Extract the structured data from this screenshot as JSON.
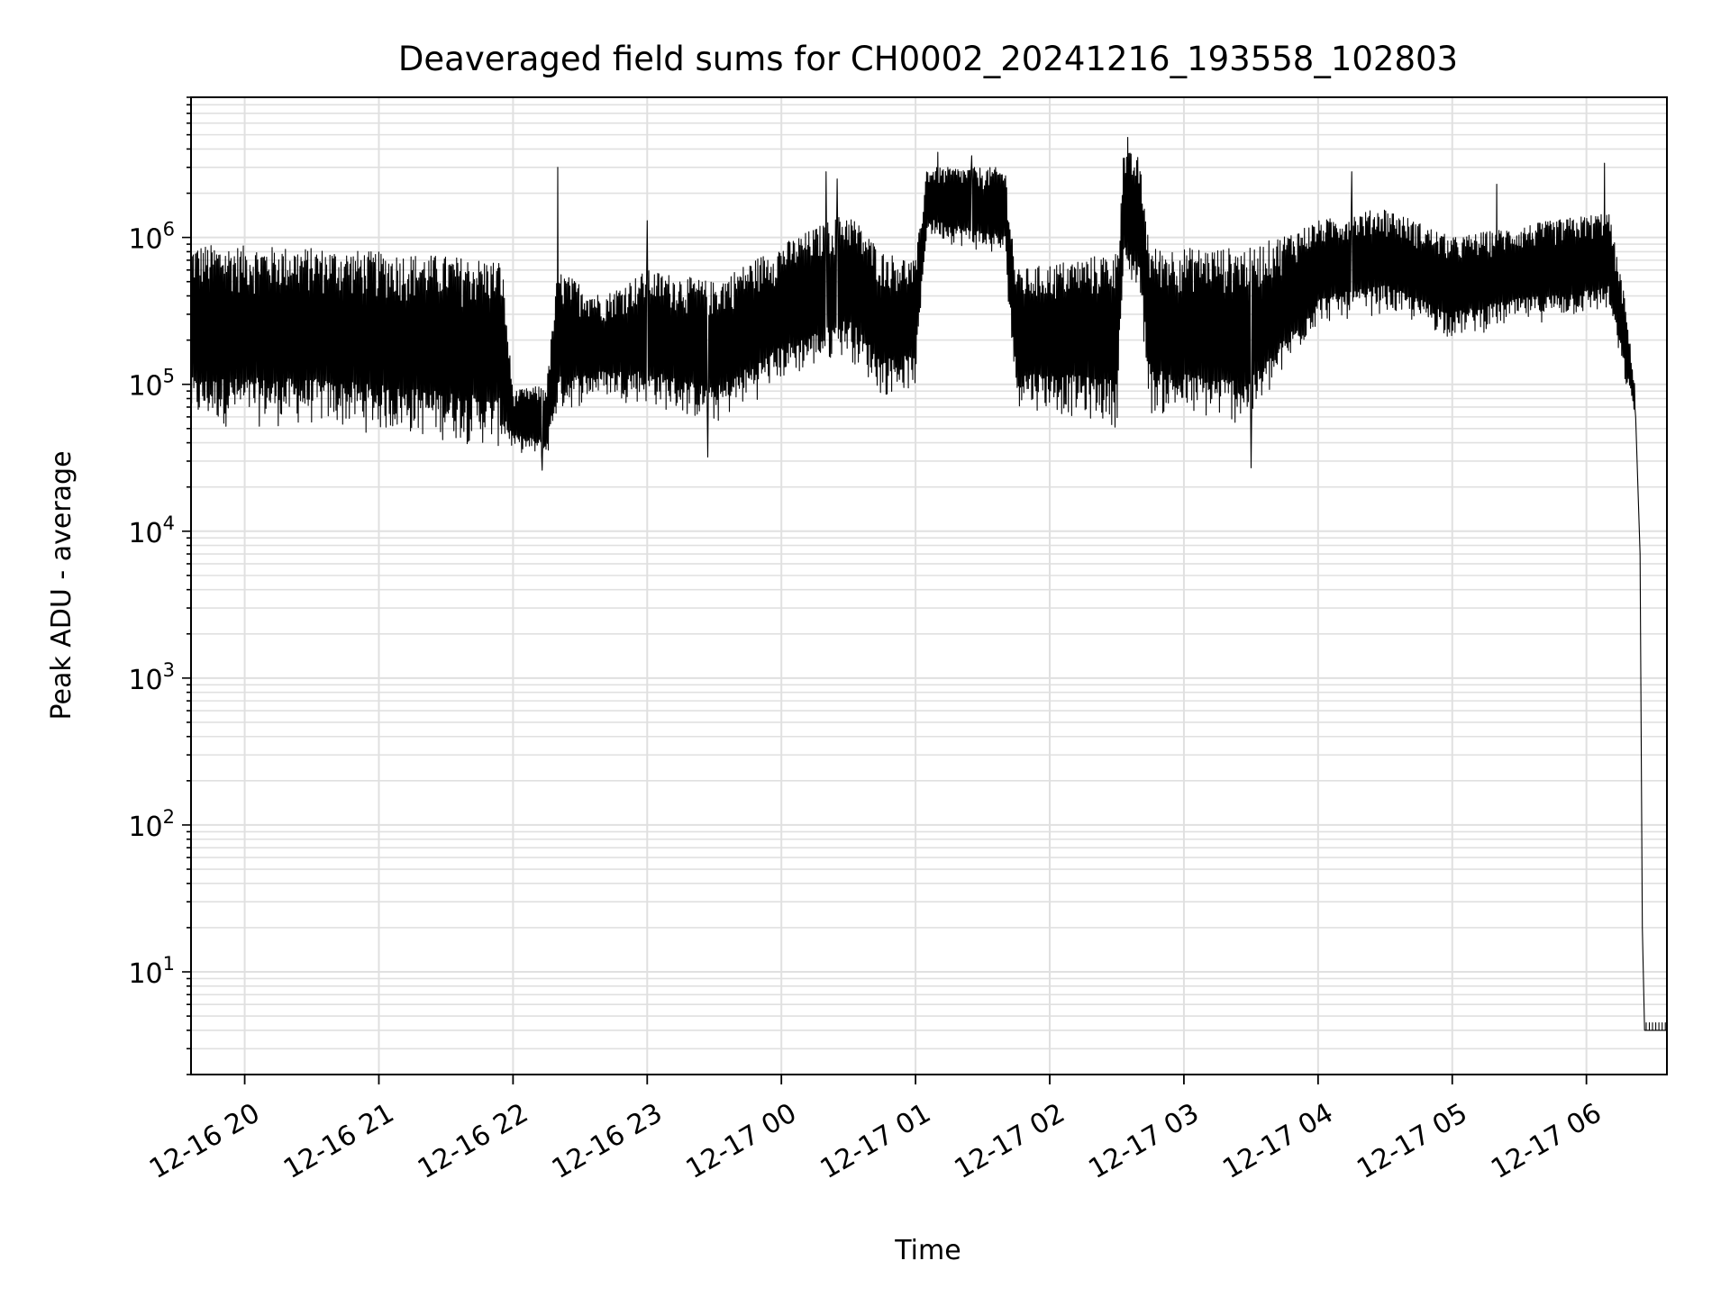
{
  "chart_data": {
    "type": "line",
    "title": "Deaveraged field sums for CH0002_20241216_193558_102803",
    "xlabel": "Time",
    "ylabel": "Peak ADU - average",
    "y_scale": "log",
    "ylim": [
      2,
      9000000
    ],
    "xlim": [
      "2024-12-16 19:36",
      "2024-12-17 06:36"
    ],
    "grid": true,
    "grid_minor": true,
    "line_color": "#000000",
    "grid_color": "#e0e0e0",
    "x_ticks": [
      {
        "t": "2024-12-16 20:00",
        "label": "12-16 20"
      },
      {
        "t": "2024-12-16 21:00",
        "label": "12-16 21"
      },
      {
        "t": "2024-12-16 22:00",
        "label": "12-16 22"
      },
      {
        "t": "2024-12-16 23:00",
        "label": "12-16 23"
      },
      {
        "t": "2024-12-17 00:00",
        "label": "12-17 00"
      },
      {
        "t": "2024-12-17 01:00",
        "label": "12-17 01"
      },
      {
        "t": "2024-12-17 02:00",
        "label": "12-17 02"
      },
      {
        "t": "2024-12-17 03:00",
        "label": "12-17 03"
      },
      {
        "t": "2024-12-17 04:00",
        "label": "12-17 04"
      },
      {
        "t": "2024-12-17 05:00",
        "label": "12-17 05"
      },
      {
        "t": "2024-12-17 06:00",
        "label": "12-17 06"
      }
    ],
    "y_ticks": [
      {
        "value": 10,
        "base": "10",
        "exp": "1"
      },
      {
        "value": 100,
        "base": "10",
        "exp": "2"
      },
      {
        "value": 1000,
        "base": "10",
        "exp": "3"
      },
      {
        "value": 10000,
        "base": "10",
        "exp": "4"
      },
      {
        "value": 100000,
        "base": "10",
        "exp": "5"
      },
      {
        "value": 1000000,
        "base": "10",
        "exp": "6"
      }
    ],
    "series": [
      {
        "style": "dense-oscillation",
        "envelope": [
          {
            "t": "2024-12-16 19:36",
            "low": 50000,
            "high": 900000
          },
          {
            "t": "2024-12-16 20:30",
            "low": 50000,
            "high": 850000
          },
          {
            "t": "2024-12-16 21:30",
            "low": 40000,
            "high": 750000
          },
          {
            "t": "2024-12-16 21:55",
            "low": 35000,
            "high": 700000
          },
          {
            "t": "2024-12-16 22:00",
            "low": 35000,
            "high": 90000
          },
          {
            "t": "2024-12-16 22:15",
            "low": 30000,
            "high": 100000
          },
          {
            "t": "2024-12-16 22:20",
            "low": 60000,
            "high": 600000
          },
          {
            "t": "2024-12-16 22:40",
            "low": 80000,
            "high": 400000
          },
          {
            "t": "2024-12-16 23:00",
            "low": 70000,
            "high": 600000
          },
          {
            "t": "2024-12-16 23:30",
            "low": 50000,
            "high": 500000
          },
          {
            "t": "2024-12-17 00:00",
            "low": 100000,
            "high": 900000
          },
          {
            "t": "2024-12-17 00:30",
            "low": 150000,
            "high": 1500000
          },
          {
            "t": "2024-12-17 00:45",
            "low": 80000,
            "high": 800000
          },
          {
            "t": "2024-12-17 01:00",
            "low": 90000,
            "high": 700000
          },
          {
            "t": "2024-12-17 01:05",
            "low": 1000000,
            "high": 3000000
          },
          {
            "t": "2024-12-17 01:40",
            "low": 700000,
            "high": 3000000
          },
          {
            "t": "2024-12-17 01:45",
            "low": 70000,
            "high": 600000
          },
          {
            "t": "2024-12-17 02:30",
            "low": 50000,
            "high": 800000
          },
          {
            "t": "2024-12-17 02:33",
            "low": 500000,
            "high": 4000000
          },
          {
            "t": "2024-12-17 02:40",
            "low": 400000,
            "high": 3500000
          },
          {
            "t": "2024-12-17 02:45",
            "low": 60000,
            "high": 850000
          },
          {
            "t": "2024-12-17 03:30",
            "low": 50000,
            "high": 850000
          },
          {
            "t": "2024-12-17 04:00",
            "low": 250000,
            "high": 1300000
          },
          {
            "t": "2024-12-17 04:30",
            "low": 300000,
            "high": 1600000
          },
          {
            "t": "2024-12-17 05:00",
            "low": 200000,
            "high": 1000000
          },
          {
            "t": "2024-12-17 05:30",
            "low": 250000,
            "high": 1200000
          },
          {
            "t": "2024-12-17 06:10",
            "low": 300000,
            "high": 1500000
          },
          {
            "t": "2024-12-17 06:17",
            "low": 100000,
            "high": 400000
          },
          {
            "t": "2024-12-17 06:22",
            "low": 60000,
            "high": 90000
          }
        ],
        "spikes": [
          {
            "t": "2024-12-16 22:20",
            "value": 3000000
          },
          {
            "t": "2024-12-16 23:00",
            "value": 1300000
          },
          {
            "t": "2024-12-17 00:20",
            "value": 2800000
          },
          {
            "t": "2024-12-17 00:25",
            "value": 2500000
          },
          {
            "t": "2024-12-17 01:10",
            "value": 3800000
          },
          {
            "t": "2024-12-17 01:25",
            "value": 3600000
          },
          {
            "t": "2024-12-17 02:35",
            "value": 4800000
          },
          {
            "t": "2024-12-17 04:15",
            "value": 2800000
          },
          {
            "t": "2024-12-17 05:20",
            "value": 2300000
          },
          {
            "t": "2024-12-17 06:08",
            "value": 3200000
          },
          {
            "t": "2024-12-16 22:13",
            "value": 26000
          },
          {
            "t": "2024-12-16 23:27",
            "value": 32000
          },
          {
            "t": "2024-12-17 03:30",
            "value": 27000
          }
        ],
        "drop": [
          {
            "t": "2024-12-17 06:22",
            "value": 60000
          },
          {
            "t": "2024-12-17 06:24",
            "value": 7000
          },
          {
            "t": "2024-12-17 06:25",
            "value": 20
          },
          {
            "t": "2024-12-17 06:26",
            "value": 4
          },
          {
            "t": "2024-12-17 06:36",
            "value": 4
          }
        ],
        "tail_range": [
          4,
          4.5
        ]
      }
    ]
  }
}
